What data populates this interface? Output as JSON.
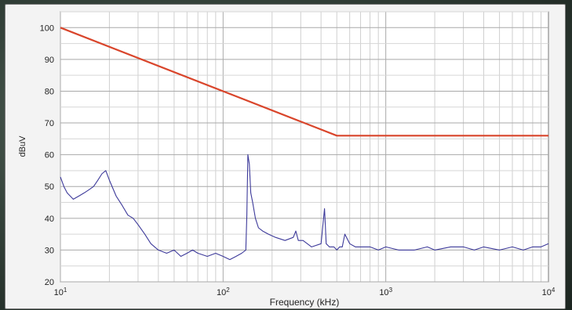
{
  "chart_data": {
    "type": "line",
    "title": "",
    "xlabel": "Frequency (kHz)",
    "ylabel": "dBuV",
    "x_scale": "log",
    "xlim": [
      10,
      10000
    ],
    "ylim": [
      20,
      105
    ],
    "grid": true,
    "y_ticks": [
      20,
      30,
      40,
      50,
      60,
      70,
      80,
      90,
      100
    ],
    "x_ticks": [
      {
        "value": 10,
        "base": "10",
        "exp": "1"
      },
      {
        "value": 100,
        "base": "10",
        "exp": "2"
      },
      {
        "value": 1000,
        "base": "10",
        "exp": "3"
      },
      {
        "value": 10000,
        "base": "10",
        "exp": "4"
      }
    ],
    "series": [
      {
        "color": "#d9452b",
        "x": [
          10,
          500,
          10000
        ],
        "y": [
          100,
          66,
          66
        ]
      },
      {
        "color": "#3d3a9a",
        "x": [
          10,
          10.5,
          11,
          12,
          13,
          14,
          15,
          16,
          17,
          18,
          19,
          20,
          22,
          24,
          26,
          28,
          30,
          33,
          36,
          40,
          45,
          50,
          55,
          60,
          65,
          70,
          80,
          90,
          100,
          110,
          120,
          130,
          138,
          140,
          142,
          145,
          148,
          152,
          158,
          165,
          175,
          190,
          210,
          240,
          270,
          280,
          290,
          310,
          350,
          400,
          420,
          425,
          430,
          450,
          480,
          500,
          520,
          540,
          560,
          600,
          650,
          700,
          800,
          900,
          1000,
          1200,
          1500,
          1800,
          2000,
          2500,
          3000,
          3500,
          4000,
          5000,
          6000,
          7000,
          8000,
          9000,
          10000
        ],
        "y": [
          53,
          50,
          48,
          46,
          47,
          48,
          49,
          50,
          52,
          54,
          55,
          52,
          47,
          44,
          41,
          40,
          38,
          35,
          32,
          30,
          29,
          30,
          28,
          29,
          30,
          29,
          28,
          29,
          28,
          27,
          28,
          29,
          30,
          41,
          60,
          57,
          48,
          45,
          40,
          37,
          36,
          35,
          34,
          33,
          34,
          36,
          33,
          33,
          31,
          32,
          43,
          38,
          32,
          31,
          31,
          30,
          31,
          31,
          35,
          32,
          31,
          31,
          31,
          30,
          31,
          30,
          30,
          31,
          30,
          31,
          31,
          30,
          31,
          30,
          31,
          30,
          31,
          31,
          32
        ]
      }
    ]
  }
}
